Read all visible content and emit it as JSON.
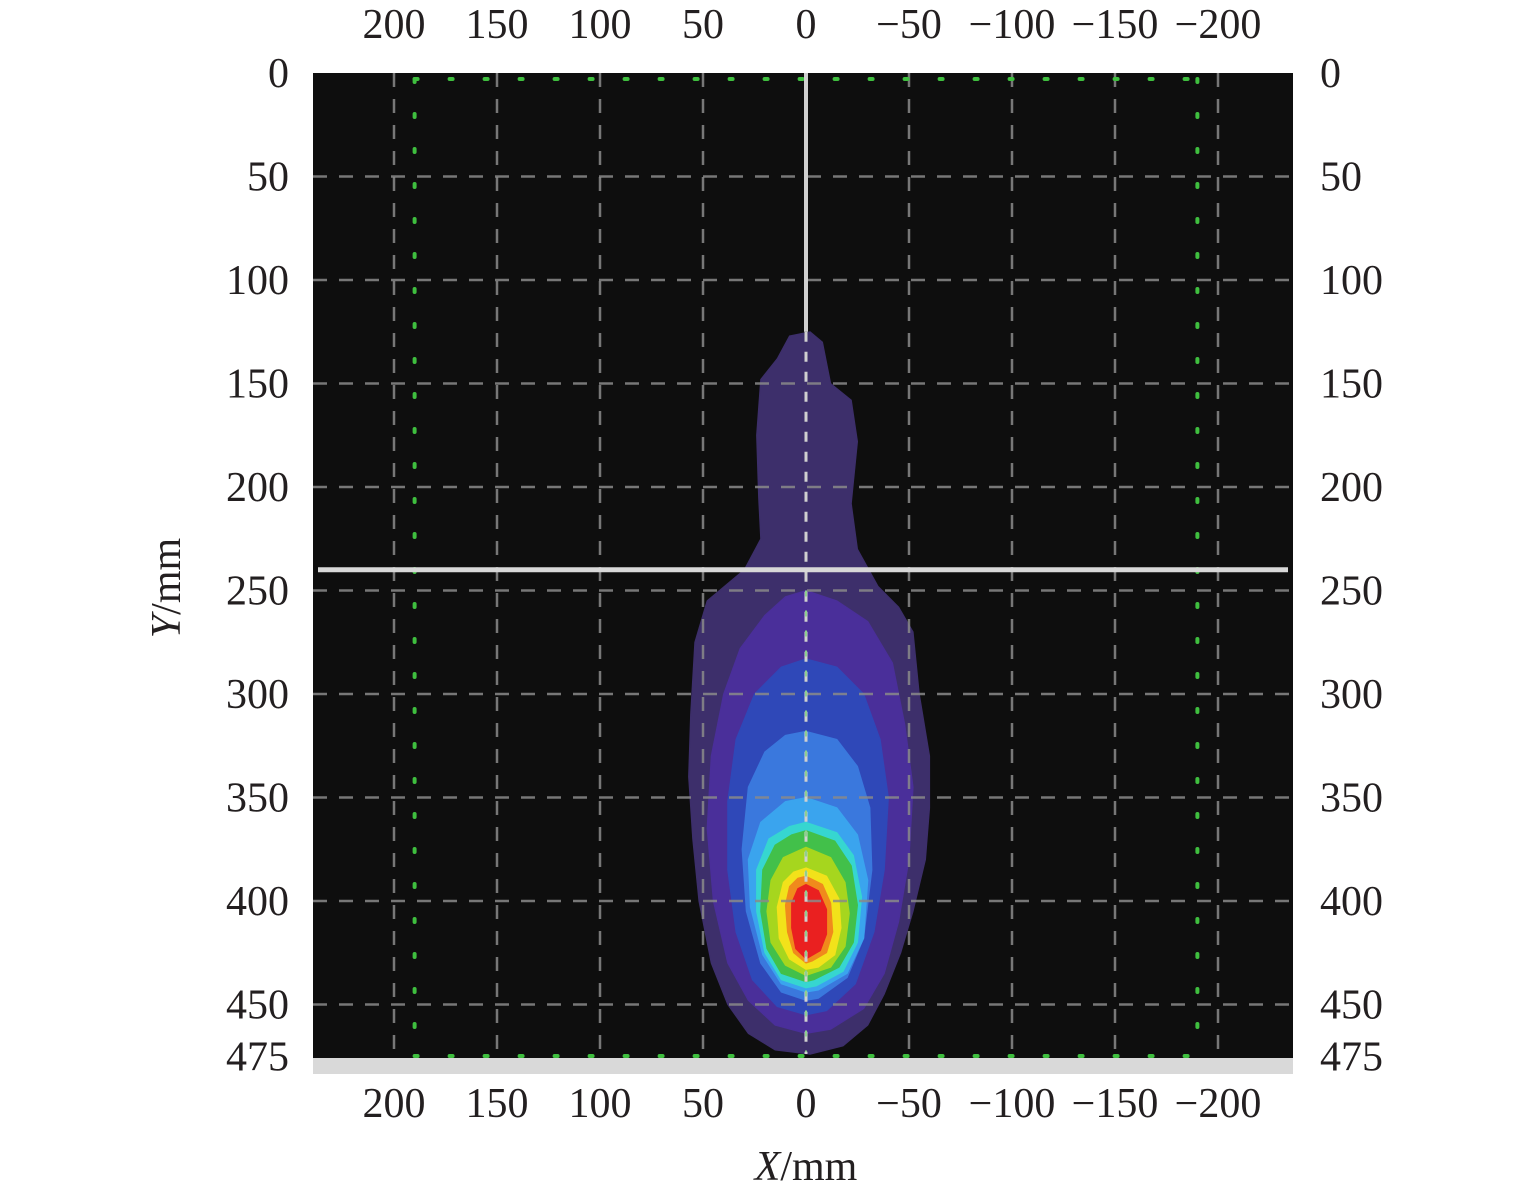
{
  "chart_data": {
    "type": "heatmap",
    "title": "",
    "xlabel": {
      "var": "X",
      "unit": "/mm"
    },
    "ylabel": {
      "var": "Y",
      "unit": "/mm"
    },
    "x_ticks": [
      200,
      150,
      100,
      50,
      0,
      -50,
      -100,
      -150,
      -200
    ],
    "x_tick_labels": [
      "200",
      "150",
      "100",
      "50",
      "0",
      "−50",
      "−100",
      "−150",
      "−200"
    ],
    "y_ticks": [
      0,
      50,
      100,
      150,
      200,
      250,
      300,
      350,
      400,
      450,
      475
    ],
    "y_tick_labels": [
      "0",
      "50",
      "100",
      "150",
      "200",
      "250",
      "300",
      "350",
      "400",
      "450",
      "475"
    ],
    "xlim": [
      240,
      -240
    ],
    "ylim": [
      0,
      475
    ],
    "x_reversed": true,
    "y_inverted": true,
    "grid": true,
    "ticks_on": [
      "top",
      "bottom",
      "left",
      "right"
    ],
    "background_color": "#0e0e0e",
    "crosshair": {
      "x": 0,
      "y": 240
    },
    "contour_levels": [
      {
        "level": 1,
        "color": "#3d2f6b",
        "boundary": [
          [
            -2,
            125
          ],
          [
            -8,
            130
          ],
          [
            -12,
            150
          ],
          [
            -22,
            158
          ],
          [
            -25,
            178
          ],
          [
            -22,
            208
          ],
          [
            -25,
            230
          ],
          [
            -35,
            248
          ],
          [
            -45,
            258
          ],
          [
            -52,
            270
          ],
          [
            -55,
            300
          ],
          [
            -60,
            330
          ],
          [
            -60,
            355
          ],
          [
            -58,
            380
          ],
          [
            -52,
            405
          ],
          [
            -46,
            425
          ],
          [
            -38,
            445
          ],
          [
            -30,
            460
          ],
          [
            -18,
            470
          ],
          [
            -2,
            474
          ],
          [
            15,
            472
          ],
          [
            28,
            464
          ],
          [
            38,
            450
          ],
          [
            46,
            430
          ],
          [
            52,
            400
          ],
          [
            55,
            370
          ],
          [
            57,
            340
          ],
          [
            56,
            310
          ],
          [
            54,
            275
          ],
          [
            48,
            255
          ],
          [
            30,
            240
          ],
          [
            22,
            225
          ],
          [
            23,
            205
          ],
          [
            24,
            175
          ],
          [
            22,
            148
          ],
          [
            14,
            138
          ],
          [
            8,
            127
          ]
        ]
      },
      {
        "level": 2,
        "color": "#4a2f9a",
        "boundary": [
          [
            0,
            250
          ],
          [
            -15,
            255
          ],
          [
            -30,
            265
          ],
          [
            -42,
            285
          ],
          [
            -48,
            315
          ],
          [
            -52,
            345
          ],
          [
            -50,
            380
          ],
          [
            -45,
            410
          ],
          [
            -38,
            435
          ],
          [
            -28,
            452
          ],
          [
            -12,
            462
          ],
          [
            0,
            464
          ],
          [
            15,
            460
          ],
          [
            28,
            448
          ],
          [
            38,
            430
          ],
          [
            45,
            400
          ],
          [
            48,
            365
          ],
          [
            46,
            330
          ],
          [
            40,
            300
          ],
          [
            32,
            278
          ],
          [
            20,
            262
          ],
          [
            10,
            253
          ]
        ]
      },
      {
        "level": 3,
        "color": "#2f48b8",
        "boundary": [
          [
            0,
            283
          ],
          [
            -15,
            287
          ],
          [
            -28,
            300
          ],
          [
            -36,
            322
          ],
          [
            -40,
            350
          ],
          [
            -38,
            385
          ],
          [
            -33,
            415
          ],
          [
            -24,
            440
          ],
          [
            -10,
            453
          ],
          [
            0,
            455
          ],
          [
            14,
            451
          ],
          [
            26,
            438
          ],
          [
            34,
            415
          ],
          [
            38,
            385
          ],
          [
            38,
            352
          ],
          [
            34,
            322
          ],
          [
            25,
            300
          ],
          [
            12,
            287
          ]
        ]
      },
      {
        "level": 4,
        "color": "#3a78dd",
        "boundary": [
          [
            0,
            318
          ],
          [
            -15,
            322
          ],
          [
            -25,
            335
          ],
          [
            -31,
            355
          ],
          [
            -32,
            385
          ],
          [
            -28,
            418
          ],
          [
            -20,
            437
          ],
          [
            -6,
            447
          ],
          [
            0,
            448
          ],
          [
            12,
            444
          ],
          [
            22,
            430
          ],
          [
            29,
            405
          ],
          [
            31,
            375
          ],
          [
            28,
            345
          ],
          [
            20,
            328
          ],
          [
            10,
            320
          ]
        ]
      },
      {
        "level": 5,
        "color": "#3aa4ee",
        "boundary": [
          [
            0,
            350
          ],
          [
            -15,
            355
          ],
          [
            -25,
            368
          ],
          [
            -30,
            390
          ],
          [
            -28,
            418
          ],
          [
            -20,
            435
          ],
          [
            -6,
            443
          ],
          [
            0,
            444
          ],
          [
            12,
            440
          ],
          [
            21,
            426
          ],
          [
            27,
            403
          ],
          [
            28,
            380
          ],
          [
            22,
            362
          ],
          [
            10,
            352
          ]
        ]
      },
      {
        "level": 6,
        "color": "#36d6d0",
        "boundary": [
          [
            0,
            362
          ],
          [
            -15,
            367
          ],
          [
            -23,
            378
          ],
          [
            -27,
            398
          ],
          [
            -25,
            420
          ],
          [
            -18,
            434
          ],
          [
            -5,
            441
          ],
          [
            0,
            442
          ],
          [
            12,
            438
          ],
          [
            20,
            425
          ],
          [
            24,
            405
          ],
          [
            24,
            385
          ],
          [
            18,
            370
          ],
          [
            8,
            364
          ]
        ]
      },
      {
        "level": 7,
        "color": "#42c04a",
        "boundary": [
          [
            0,
            366
          ],
          [
            -14,
            371
          ],
          [
            -22,
            383
          ],
          [
            -25,
            402
          ],
          [
            -23,
            420
          ],
          [
            -16,
            432
          ],
          [
            -4,
            438
          ],
          [
            0,
            439
          ],
          [
            12,
            435
          ],
          [
            19,
            423
          ],
          [
            22,
            405
          ],
          [
            21,
            385
          ],
          [
            15,
            373
          ],
          [
            7,
            368
          ]
        ]
      },
      {
        "level": 8,
        "color": "#a6d61e",
        "boundary": [
          [
            0,
            374
          ],
          [
            -12,
            379
          ],
          [
            -19,
            391
          ],
          [
            -21,
            406
          ],
          [
            -19,
            422
          ],
          [
            -12,
            432
          ],
          [
            0,
            436
          ],
          [
            10,
            431
          ],
          [
            17,
            420
          ],
          [
            19,
            405
          ],
          [
            17,
            390
          ],
          [
            11,
            379
          ]
        ]
      },
      {
        "level": 9,
        "color": "#f2e21a",
        "boundary": [
          [
            0,
            384
          ],
          [
            -10,
            388
          ],
          [
            -16,
            399
          ],
          [
            -17,
            413
          ],
          [
            -14,
            426
          ],
          [
            -6,
            432
          ],
          [
            0,
            433
          ],
          [
            8,
            428
          ],
          [
            13,
            418
          ],
          [
            14,
            403
          ],
          [
            11,
            391
          ],
          [
            6,
            386
          ]
        ]
      },
      {
        "level": 10,
        "color": "#f08a1c",
        "boundary": [
          [
            0,
            388
          ],
          [
            -8,
            392
          ],
          [
            -12,
            401
          ],
          [
            -13,
            415
          ],
          [
            -10,
            425
          ],
          [
            -3,
            429
          ],
          [
            0,
            430
          ],
          [
            6,
            425
          ],
          [
            9,
            415
          ],
          [
            10,
            402
          ],
          [
            8,
            393
          ],
          [
            4,
            389
          ]
        ]
      },
      {
        "level": 11,
        "color": "#ea2020",
        "boundary": [
          [
            0,
            392
          ],
          [
            -6,
            395
          ],
          [
            -10,
            404
          ],
          [
            -10,
            416
          ],
          [
            -7,
            424
          ],
          [
            0,
            428
          ],
          [
            5,
            423
          ],
          [
            7,
            413
          ],
          [
            7,
            401
          ],
          [
            4,
            394
          ]
        ]
      }
    ]
  }
}
